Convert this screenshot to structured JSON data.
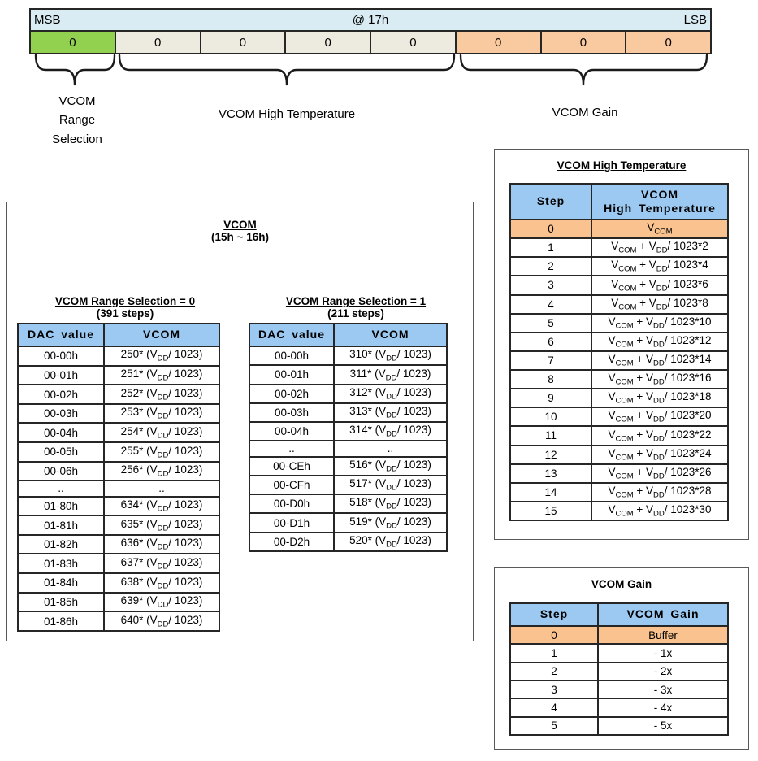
{
  "register": {
    "msb_label": "MSB",
    "address_label": "@ 17h",
    "lsb_label": "LSB",
    "bits": [
      "0",
      "0",
      "0",
      "0",
      "0",
      "0",
      "0",
      "0"
    ],
    "field_labels": {
      "range": "VCOM\nRange\nSelection",
      "high_temp": "VCOM High Temperature",
      "gain": "VCOM Gain"
    }
  },
  "vcom_panel": {
    "title": "VCOM",
    "subtitle": "(15h ~ 16h)",
    "range0": {
      "heading": "VCOM Range Selection = 0",
      "note": "(391 steps)",
      "columns": [
        "DAC value",
        "VCOM"
      ],
      "rows": [
        [
          "00-00h",
          "250* (V_{DD}/ 1023)"
        ],
        [
          "00-01h",
          "251* (V_{DD}/ 1023)"
        ],
        [
          "00-02h",
          "252* (V_{DD}/ 1023)"
        ],
        [
          "00-03h",
          "253* (V_{DD}/ 1023)"
        ],
        [
          "00-04h",
          "254* (V_{DD}/ 1023)"
        ],
        [
          "00-05h",
          "255* (V_{DD}/ 1023)"
        ],
        [
          "00-06h",
          "256* (V_{DD}/ 1023)"
        ],
        [
          "..",
          ".."
        ],
        [
          "01-80h",
          "634* (V_{DD}/ 1023)"
        ],
        [
          "01-81h",
          "635* (V_{DD}/ 1023)"
        ],
        [
          "01-82h",
          "636* (V_{DD}/ 1023)"
        ],
        [
          "01-83h",
          "637* (V_{DD}/ 1023)"
        ],
        [
          "01-84h",
          "638* (V_{DD}/ 1023)"
        ],
        [
          "01-85h",
          "639* (V_{DD}/ 1023)"
        ],
        [
          "01-86h",
          "640* (V_{DD}/ 1023)"
        ]
      ]
    },
    "range1": {
      "heading": "VCOM Range Selection = 1",
      "note": "(211 steps)",
      "columns": [
        "DAC value",
        "VCOM"
      ],
      "rows": [
        [
          "00-00h",
          "310* (V_{DD}/ 1023)"
        ],
        [
          "00-01h",
          "311* (V_{DD}/ 1023)"
        ],
        [
          "00-02h",
          "312* (V_{DD}/ 1023)"
        ],
        [
          "00-03h",
          "313* (V_{DD}/ 1023)"
        ],
        [
          "00-04h",
          "314* (V_{DD}/ 1023)"
        ],
        [
          "..",
          ".."
        ],
        [
          "00-CEh",
          "516* (V_{DD}/ 1023)"
        ],
        [
          "00-CFh",
          "517* (V_{DD}/ 1023)"
        ],
        [
          "00-D0h",
          "518* (V_{DD}/ 1023)"
        ],
        [
          "00-D1h",
          "519* (V_{DD}/ 1023)"
        ],
        [
          "00-D2h",
          "520* (V_{DD}/ 1023)"
        ]
      ]
    }
  },
  "temp_panel": {
    "title": "VCOM High Temperature",
    "columns": [
      "Step",
      "VCOM\nHigh Temperature"
    ],
    "rows": [
      [
        "0",
        "V_{COM}"
      ],
      [
        "1",
        "V_{COM} + V_{DD}/ 1023*2"
      ],
      [
        "2",
        "V_{COM} + V_{DD}/ 1023*4"
      ],
      [
        "3",
        "V_{COM} + V_{DD}/ 1023*6"
      ],
      [
        "4",
        "V_{COM} + V_{DD}/ 1023*8"
      ],
      [
        "5",
        "V_{COM} + V_{DD}/ 1023*10"
      ],
      [
        "6",
        "V_{COM} + V_{DD}/ 1023*12"
      ],
      [
        "7",
        "V_{COM} + V_{DD}/ 1023*14"
      ],
      [
        "8",
        "V_{COM} + V_{DD}/ 1023*16"
      ],
      [
        "9",
        "V_{COM} + V_{DD}/ 1023*18"
      ],
      [
        "10",
        "V_{COM} + V_{DD}/ 1023*20"
      ],
      [
        "11",
        "V_{COM} + V_{DD}/ 1023*22"
      ],
      [
        "12",
        "V_{COM} + V_{DD}/ 1023*24"
      ],
      [
        "13",
        "V_{COM} + V_{DD}/ 1023*26"
      ],
      [
        "14",
        "V_{COM} + V_{DD}/ 1023*28"
      ],
      [
        "15",
        "V_{COM} + V_{DD}/ 1023*30"
      ]
    ]
  },
  "gain_panel": {
    "title": "VCOM Gain",
    "columns": [
      "Step",
      "VCOM Gain"
    ],
    "rows": [
      [
        "0",
        "Buffer"
      ],
      [
        "1",
        "- 1x"
      ],
      [
        "2",
        "- 2x"
      ],
      [
        "3",
        "- 3x"
      ],
      [
        "4",
        "- 4x"
      ],
      [
        "5",
        "- 5x"
      ]
    ]
  },
  "colors": {
    "register_header_blue": "#D9ECF3",
    "bit_range_green": "#92D050",
    "bit_temp_gray": "#EDEBE0",
    "bit_gain_orange": "#F9C9A0",
    "table_header_blue": "#9CC9F1",
    "accent_row_orange": "#FAC28F"
  }
}
